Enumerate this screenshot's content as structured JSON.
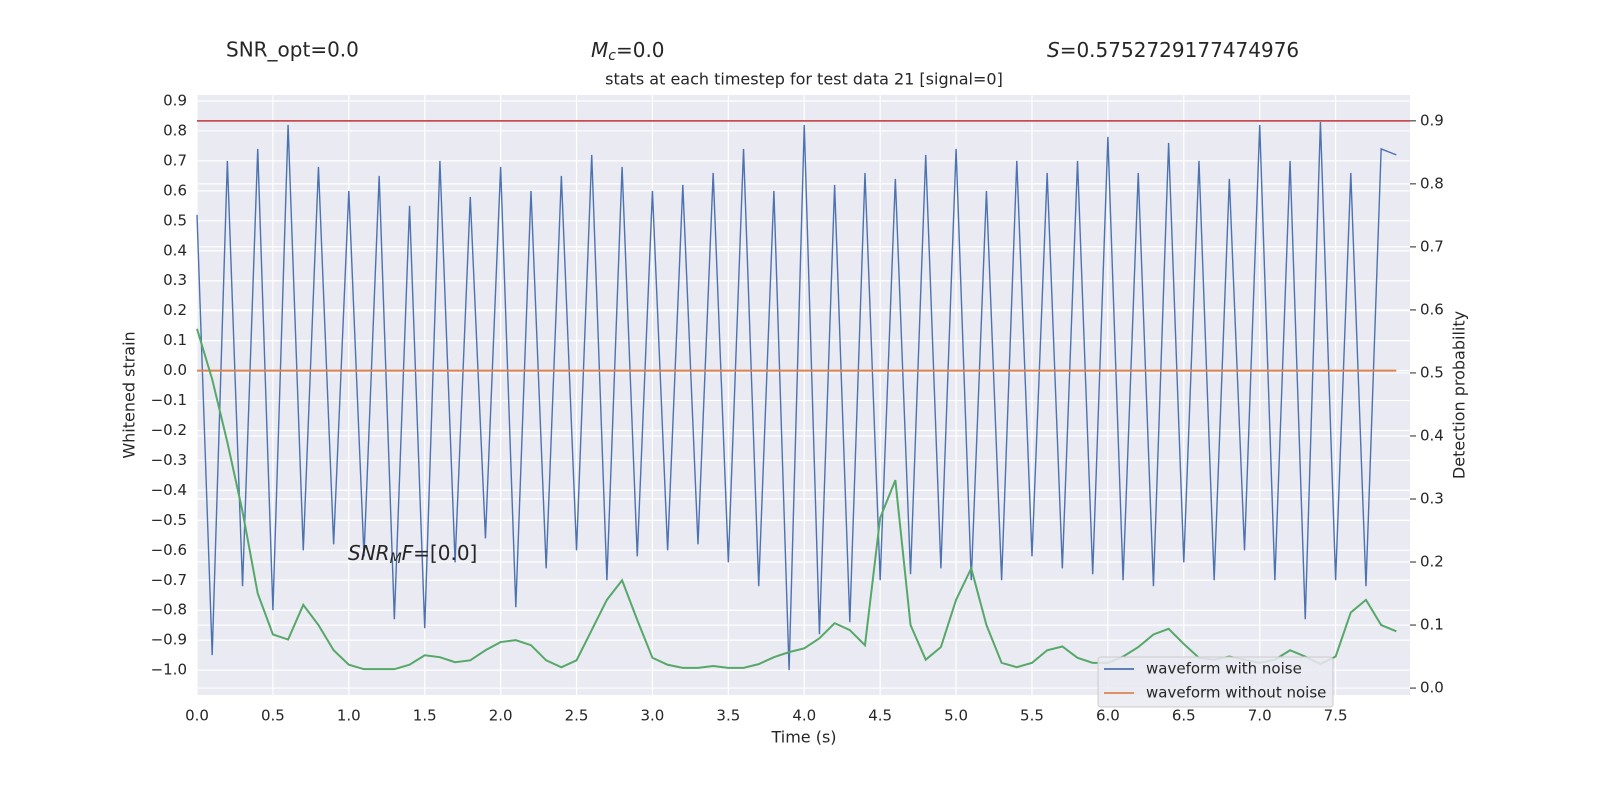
{
  "chart_data": {
    "type": "line",
    "title": "stats at each timestep for test data 21 [signal=0]",
    "xlabel": "Time (s)",
    "ylabel": "Whitened strain",
    "y2label": "Detection probability",
    "annotations": [
      {
        "text": "SNR_opt=0.0"
      },
      {
        "italic": "M",
        "sub": "c",
        "text": "=0.0"
      },
      {
        "italic": "S",
        "text": "=0.5752729177474976"
      },
      {
        "italic": "SNR",
        "sub": "M",
        "italic2": "F",
        "text": "=[0.0]"
      }
    ],
    "x": [
      0.0,
      0.1,
      0.2,
      0.3,
      0.4,
      0.5,
      0.6,
      0.7,
      0.8,
      0.9,
      1.0,
      1.1,
      1.2,
      1.3,
      1.4,
      1.5,
      1.6,
      1.7,
      1.8,
      1.9,
      2.0,
      2.1,
      2.2,
      2.3,
      2.4,
      2.5,
      2.6,
      2.7,
      2.8,
      2.9,
      3.0,
      3.1,
      3.2,
      3.3,
      3.4,
      3.5,
      3.6,
      3.7,
      3.8,
      3.9,
      4.0,
      4.1,
      4.2,
      4.3,
      4.4,
      4.5,
      4.6,
      4.7,
      4.8,
      4.9,
      5.0,
      5.1,
      5.2,
      5.3,
      5.4,
      5.5,
      5.6,
      5.7,
      5.8,
      5.9,
      6.0,
      6.1,
      6.2,
      6.3,
      6.4,
      6.5,
      6.6,
      6.7,
      6.8,
      6.9,
      7.0,
      7.1,
      7.2,
      7.3,
      7.4,
      7.5,
      7.6,
      7.7,
      7.8,
      7.9
    ],
    "series": [
      {
        "name": "waveform with noise",
        "color": "#4c72b0",
        "values": [
          0.52,
          -0.95,
          0.7,
          -0.72,
          0.74,
          -0.8,
          0.82,
          -0.6,
          0.68,
          -0.58,
          0.6,
          -0.62,
          0.65,
          -0.83,
          0.55,
          -0.86,
          0.7,
          -0.64,
          0.58,
          -0.56,
          0.68,
          -0.79,
          0.6,
          -0.66,
          0.65,
          -0.6,
          0.72,
          -0.7,
          0.68,
          -0.62,
          0.6,
          -0.6,
          0.62,
          -0.58,
          0.66,
          -0.64,
          0.74,
          -0.72,
          0.6,
          -1.0,
          0.82,
          -0.88,
          0.62,
          -0.84,
          0.66,
          -0.7,
          0.64,
          -0.68,
          0.72,
          -0.66,
          0.74,
          -0.7,
          0.6,
          -0.7,
          0.7,
          -0.62,
          0.66,
          -0.66,
          0.7,
          -0.68,
          0.78,
          -0.7,
          0.66,
          -0.72,
          0.76,
          -0.64,
          0.7,
          -0.7,
          0.64,
          -0.6,
          0.82,
          -0.7,
          0.7,
          -0.83,
          0.83,
          -0.7,
          0.66,
          -0.72,
          0.74,
          0.72
        ]
      },
      {
        "name": "waveform without noise",
        "color": "#dd8452",
        "values": [
          0,
          0,
          0,
          0,
          0,
          0,
          0,
          0,
          0,
          0,
          0,
          0,
          0,
          0,
          0,
          0,
          0,
          0,
          0,
          0,
          0,
          0,
          0,
          0,
          0,
          0,
          0,
          0,
          0,
          0,
          0,
          0,
          0,
          0,
          0,
          0,
          0,
          0,
          0,
          0,
          0,
          0,
          0,
          0,
          0,
          0,
          0,
          0,
          0,
          0,
          0,
          0,
          0,
          0,
          0,
          0,
          0,
          0,
          0,
          0,
          0,
          0,
          0,
          0,
          0,
          0,
          0,
          0,
          0,
          0,
          0,
          0,
          0,
          0,
          0,
          0,
          0,
          0,
          0,
          0
        ]
      },
      {
        "color": "#55a868",
        "axis": "y2",
        "values": [
          0.57,
          0.49,
          0.39,
          0.28,
          0.15,
          0.085,
          0.077,
          0.132,
          0.1,
          0.06,
          0.037,
          0.03,
          0.03,
          0.03,
          0.037,
          0.052,
          0.049,
          0.041,
          0.044,
          0.06,
          0.073,
          0.076,
          0.068,
          0.044,
          0.033,
          0.044,
          0.092,
          0.14,
          0.171,
          0.108,
          0.048,
          0.037,
          0.032,
          0.032,
          0.035,
          0.032,
          0.032,
          0.038,
          0.049,
          0.057,
          0.063,
          0.079,
          0.103,
          0.092,
          0.068,
          0.27,
          0.33,
          0.1,
          0.045,
          0.065,
          0.14,
          0.19,
          0.1,
          0.04,
          0.033,
          0.04,
          0.06,
          0.066,
          0.048,
          0.04,
          0.04,
          0.05,
          0.065,
          0.085,
          0.094,
          0.07,
          0.048,
          0.045,
          0.05,
          0.045,
          0.04,
          0.045,
          0.06,
          0.05,
          0.038,
          0.05,
          0.12,
          0.14,
          0.1,
          0.09
        ]
      }
    ],
    "hlines": [
      {
        "value": 0.9,
        "axis": "y2",
        "color": "#c44e52"
      }
    ],
    "xlim": [
      0,
      7.99
    ],
    "ylim": [
      -1.083,
      0.92
    ],
    "y2lim": [
      -0.011,
      0.941
    ],
    "xticks": [
      {
        "value": 0,
        "label": "0.0"
      },
      0.5,
      {
        "value": 1,
        "label": "1.0"
      },
      1.5,
      {
        "value": 2,
        "label": "2.0"
      },
      2.5,
      {
        "value": 3,
        "label": "3.0"
      },
      3.5,
      {
        "value": 4,
        "label": "4.0"
      },
      4.5,
      {
        "value": 5,
        "label": "5.0"
      },
      5.5,
      {
        "value": 6,
        "label": "6.0"
      },
      6.5,
      {
        "value": 7,
        "label": "7.0"
      },
      7.5
    ],
    "yticks": [
      {
        "value": -1,
        "label": "−1.0"
      },
      {
        "value": -0.9,
        "label": "−0.9"
      },
      {
        "value": -0.8,
        "label": "−0.8"
      },
      {
        "value": -0.7,
        "label": "−0.7"
      },
      {
        "value": -0.6,
        "label": "−0.6"
      },
      {
        "value": -0.5,
        "label": "−0.5"
      },
      {
        "value": -0.4,
        "label": "−0.4"
      },
      {
        "value": -0.3,
        "label": "−0.3"
      },
      {
        "value": -0.2,
        "label": "−0.2"
      },
      {
        "value": -0.1,
        "label": "−0.1"
      },
      {
        "value": 0,
        "label": "0.0"
      },
      0.1,
      0.2,
      0.3,
      0.4,
      0.5,
      0.6,
      0.7,
      0.8,
      0.9
    ],
    "y2ticks": [
      {
        "value": 0,
        "label": "0.0"
      },
      0.1,
      0.2,
      0.3,
      0.4,
      0.5,
      0.6,
      0.7,
      0.8,
      0.9
    ],
    "grid": true,
    "legend": "lower right"
  }
}
